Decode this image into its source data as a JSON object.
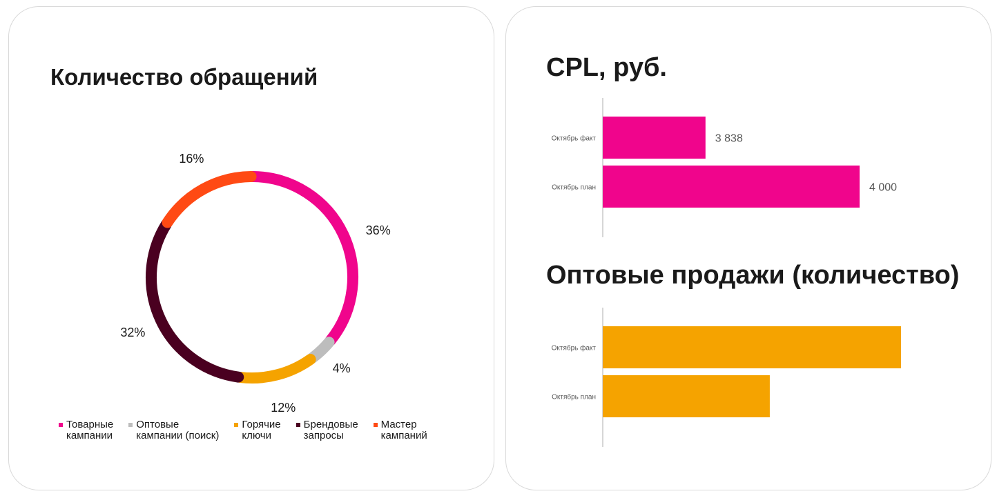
{
  "donut": {
    "title": "Количество обращений",
    "legend": [
      {
        "label": "Товарные\nкампании",
        "color": "#f0058c"
      },
      {
        "label": "Оптовые\nкампании (поиск)",
        "color": "#bdbdbd"
      },
      {
        "label": "Горячие\nключи",
        "color": "#f5a300"
      },
      {
        "label": "Брендовые\nзапросы",
        "color": "#4a0020"
      },
      {
        "label": "Мастер\nкампаний",
        "color": "#ff4a14"
      }
    ]
  },
  "cpl": {
    "title": "CPL, руб."
  },
  "wholesale": {
    "title": "Оптовые продажи (количество)"
  },
  "chart_data": [
    {
      "type": "pie",
      "title": "Количество обращений",
      "categories": [
        "Товарные кампании",
        "Оптовые кампании (поиск)",
        "Горячие ключи",
        "Брендовые запросы",
        "Мастер кампаний"
      ],
      "values": [
        36,
        4,
        12,
        32,
        16
      ],
      "labels": [
        "36%",
        "4%",
        "12%",
        "32%",
        "16%"
      ],
      "colors": [
        "#f0058c",
        "#bdbdbd",
        "#f5a300",
        "#4a0020",
        "#ff4a14"
      ],
      "donut": true,
      "legend": "bottom"
    },
    {
      "type": "bar",
      "orientation": "horizontal",
      "title": "CPL, руб.",
      "categories": [
        "Октябрь факт",
        "Октябрь план"
      ],
      "values": [
        3838,
        4000
      ],
      "value_labels": [
        "3 838",
        "4 000"
      ],
      "color": "#f0058c",
      "xlim": [
        0,
        4000
      ]
    },
    {
      "type": "bar",
      "orientation": "horizontal",
      "title": "Оптовые продажи (количество)",
      "categories": [
        "Октябрь факт",
        "Октябрь план"
      ],
      "values": [
        100,
        56
      ],
      "color": "#f5a300",
      "xlim": [
        0,
        100
      ]
    }
  ]
}
